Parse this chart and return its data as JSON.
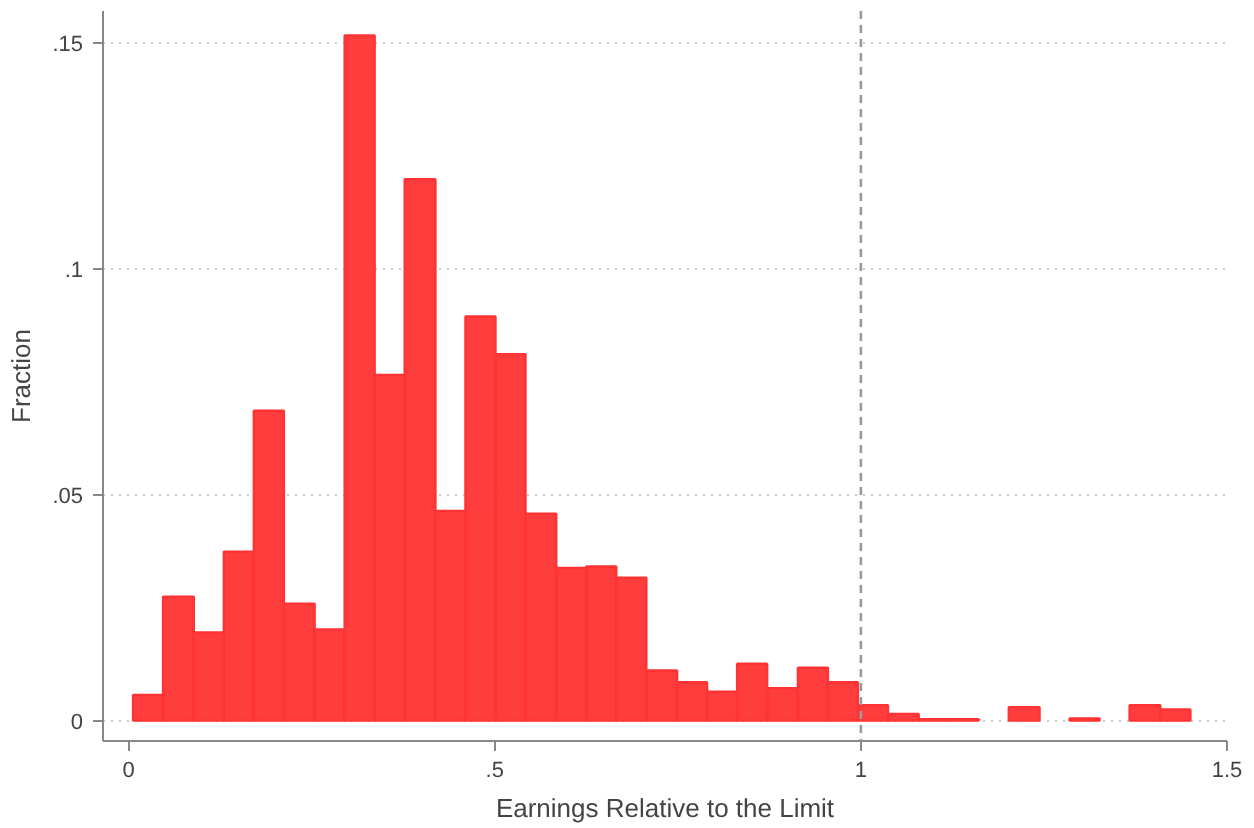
{
  "chart_data": {
    "type": "histogram",
    "xlabel": "Earnings Relative to the Limit",
    "ylabel": "Fraction",
    "bins": [
      0.006,
      0.047,
      0.089,
      0.13,
      0.171,
      0.212,
      0.254,
      0.295,
      0.336,
      0.377,
      0.419,
      0.46,
      0.501,
      0.542,
      0.584,
      0.625,
      0.666,
      0.707,
      0.749,
      0.79,
      0.831,
      0.872,
      0.914,
      0.955,
      0.996,
      1.037,
      1.079,
      1.12,
      1.161,
      1.202,
      1.244,
      1.285,
      1.326,
      1.367,
      1.409,
      1.45
    ],
    "values": [
      0.0057,
      0.0274,
      0.0195,
      0.0374,
      0.0686,
      0.0259,
      0.0202,
      0.1516,
      0.0765,
      0.1198,
      0.0464,
      0.0894,
      0.0811,
      0.0458,
      0.0338,
      0.0341,
      0.0316,
      0.0111,
      0.0085,
      0.0064,
      0.0126,
      0.0072,
      0.0117,
      0.0085,
      0.0034,
      0.0015,
      0.0003,
      0.0003,
      0,
      0.003,
      0,
      0.0005,
      0,
      0.0034,
      0.0025
    ],
    "color": "#ff3333",
    "xlim": [
      -0.035,
      1.5
    ],
    "ylim": [
      -0.0045,
      0.157
    ],
    "xticks": [
      0,
      {
        "value": 0.5,
        "label": ".5"
      },
      1,
      1.5
    ],
    "yticks": [
      0,
      {
        "value": 0.05,
        "label": ".05"
      },
      {
        "value": 0.1,
        "label": ".1"
      },
      {
        "value": 0.15,
        "label": ".15"
      }
    ],
    "grid": "y",
    "ref_lines": [
      {
        "axis": "x",
        "value": 1,
        "label": null,
        "color": "#999999",
        "line_style": "dashed"
      }
    ]
  }
}
